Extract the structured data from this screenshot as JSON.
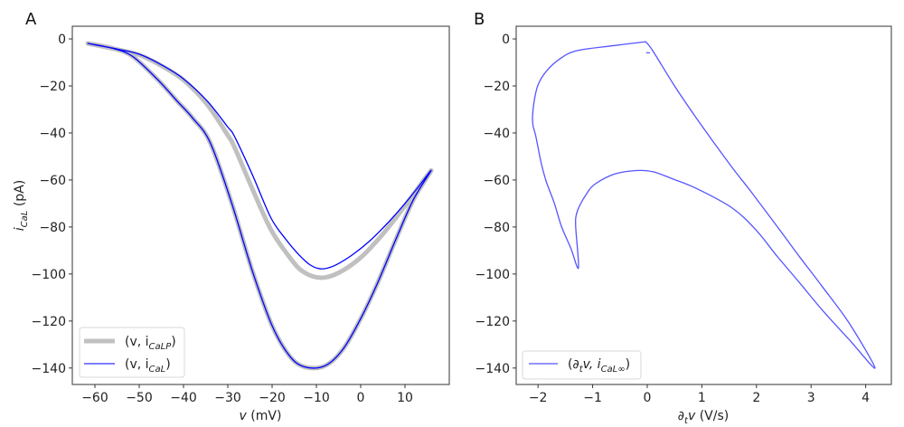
{
  "chart_data": [
    {
      "type": "line",
      "panel_label": "A",
      "xlabel": "v (mV)",
      "ylabel": "i_CaL (pA)",
      "xlim": [
        -65.1,
        20.0
      ],
      "ylim": [
        -147,
        5.4
      ],
      "xticks": [
        -60,
        -50,
        -40,
        -30,
        -20,
        -10,
        0,
        10
      ],
      "xtick_labels": [
        "−60",
        "−50",
        "−40",
        "−30",
        "−20",
        "−10",
        "0",
        "10"
      ],
      "yticks": [
        0,
        -20,
        -40,
        -60,
        -80,
        -100,
        -120,
        -140
      ],
      "ytick_labels": [
        "0",
        "−20",
        "−40",
        "−60",
        "−80",
        "−100",
        "−120",
        "−140"
      ],
      "grid": false,
      "legend_position": "lower-left",
      "series": [
        {
          "name": "(v, i_CaLP)",
          "legend_main": "(v, i",
          "legend_sub": "CaLP",
          "legend_close": ")",
          "color": "#c0c0c0",
          "style": "thick",
          "x": [
            -61.6,
            -55,
            -50,
            -44.9,
            -40,
            -34.6,
            -30,
            -28.5,
            -24.4,
            -20.3,
            -16,
            -13,
            -9.0,
            -5,
            0,
            5,
            10,
            15.9,
            12,
            8,
            4,
            0,
            -4,
            -8,
            -12.5,
            -16,
            -20,
            -24.4,
            -29.1,
            -34.0,
            -38,
            -41.4,
            -46,
            -51.6,
            -56,
            -61.6
          ],
          "y": [
            -1.9,
            -4.5,
            -6.8,
            -11.5,
            -17.5,
            -28,
            -41,
            -46,
            -64,
            -81,
            -93,
            -99,
            -101.6,
            -99.5,
            -93,
            -83,
            -71,
            -56,
            -68,
            -85,
            -103,
            -119,
            -132,
            -139,
            -139.6,
            -135,
            -122,
            -99,
            -70,
            -44,
            -33.5,
            -26.5,
            -17,
            -7.3,
            -4,
            -1.9
          ]
        },
        {
          "name": "(v, i_CaL)",
          "legend_main": "(v, i",
          "legend_sub": "CaL",
          "legend_close": ")",
          "color": "#0000ff",
          "style": "thin",
          "x": [
            -61.6,
            -55,
            -50,
            -44.9,
            -40,
            -34.6,
            -30,
            -28.5,
            -24.4,
            -20.3,
            -17,
            -14.2,
            -11.5,
            -9.0,
            -6,
            -2,
            2,
            6,
            10,
            13,
            15.9,
            12,
            8,
            4,
            0,
            -4,
            -8,
            -12.5,
            -16,
            -20,
            -24.4,
            -29.1,
            -34.0,
            -38,
            -41.4,
            -46,
            -51.6,
            -56,
            -61.6
          ],
          "y": [
            -1.9,
            -4.3,
            -6.5,
            -11.1,
            -17,
            -26.5,
            -37.5,
            -41.4,
            -58,
            -76,
            -85,
            -91.3,
            -96,
            -97.8,
            -96.5,
            -92,
            -86,
            -78.5,
            -70,
            -63,
            -56,
            -68,
            -85,
            -103,
            -119,
            -132,
            -139,
            -139.6,
            -135,
            -122,
            -99,
            -70,
            -44,
            -33.5,
            -26.5,
            -17,
            -7.3,
            -4,
            -1.9
          ]
        }
      ]
    },
    {
      "type": "line",
      "panel_label": "B",
      "xlabel": "∂tv (V/s)",
      "xlabel_parts": {
        "partial": "∂",
        "sub": "t",
        "var": "v",
        "unit": " (V/s)"
      },
      "ylabel": "",
      "xlim": [
        -2.4,
        4.47
      ],
      "ylim": [
        -147,
        5.4
      ],
      "xticks": [
        -2,
        -1,
        0,
        1,
        2,
        3,
        4
      ],
      "xtick_labels": [
        "−2",
        "−1",
        "0",
        "1",
        "2",
        "3",
        "4"
      ],
      "yticks": [
        0,
        -20,
        -40,
        -60,
        -80,
        -100,
        -120,
        -140
      ],
      "ytick_labels": [
        "0",
        "−20",
        "−40",
        "−60",
        "−80",
        "−100",
        "−120",
        "−140"
      ],
      "grid": false,
      "legend_position": "lower-left",
      "series": [
        {
          "name": "(∂tv, i_CaL∞)",
          "legend_main": "(∂",
          "legend_sub_t": "t",
          "legend_mid": "v, i",
          "legend_sub": "CaL∞",
          "legend_close": ")",
          "color": "#5555ff",
          "style": "thin",
          "x": [
            -0.03,
            -0.6,
            -1.29,
            -1.6,
            -1.85,
            -2.0,
            -2.07,
            -2.1,
            -2.09,
            -2.04,
            -1.95,
            -1.85,
            -1.7,
            -1.57,
            -1.4,
            -1.26,
            -1.31,
            -1.3,
            -1.24,
            -1.1,
            -0.96,
            -0.6,
            -0.2,
            0.1,
            0.46,
            0.91,
            1.56,
            2.0,
            2.38,
            2.8,
            3.21,
            3.7,
            4.17,
            3.7,
            3.21,
            2.8,
            2.38,
            1.9,
            1.5,
            0.91,
            0.5,
            0.1,
            -0.03
          ],
          "y": [
            -1.2,
            -2.8,
            -5,
            -8.5,
            -13.8,
            -19.5,
            -26.5,
            -33,
            -37,
            -41.4,
            -52,
            -60.6,
            -70,
            -79.8,
            -89,
            -97.4,
            -79.8,
            -75,
            -71,
            -65.5,
            -61.8,
            -57.5,
            -56,
            -56.5,
            -59.5,
            -63.7,
            -72,
            -81.5,
            -92.5,
            -104,
            -115.5,
            -128,
            -140,
            -121,
            -105.5,
            -93,
            -79.8,
            -65,
            -53,
            -34,
            -20,
            -5,
            -1.2
          ]
        }
      ],
      "annotation_tick": {
        "x": [
          -0.02,
          0.05
        ],
        "y": -5.9
      }
    }
  ]
}
